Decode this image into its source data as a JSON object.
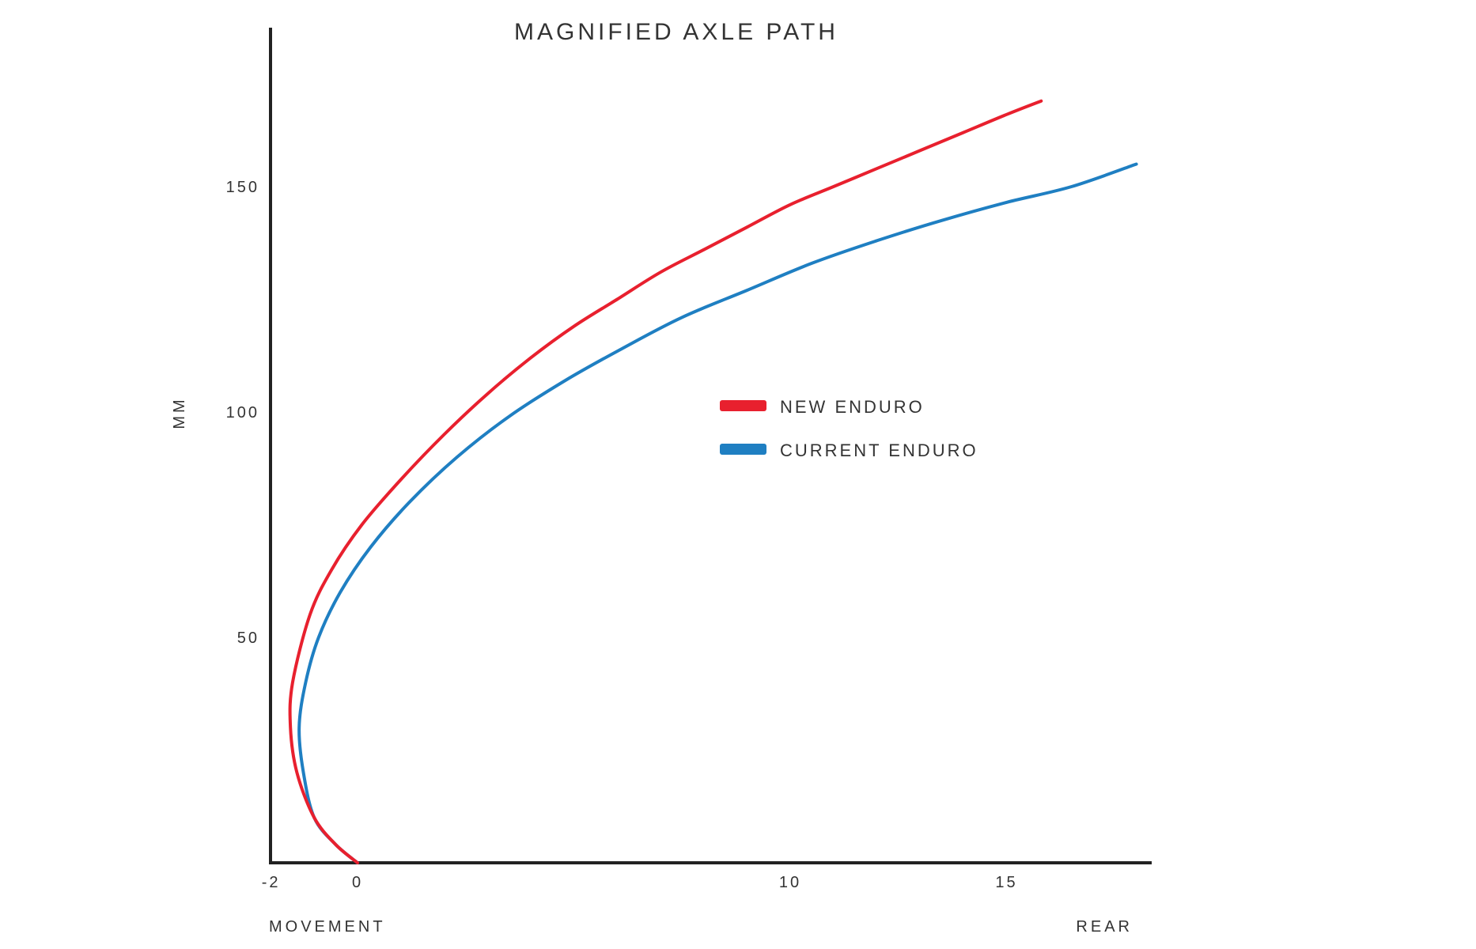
{
  "chart_data": {
    "type": "line",
    "title": "MAGNIFIED AXLE PATH",
    "xlabel_left": "MOVEMENT",
    "xlabel_right": "REAR",
    "ylabel": "MM",
    "xlim": [
      -2,
      18.2
    ],
    "ylim": [
      0,
      185
    ],
    "x_ticks": [
      -2,
      0,
      10,
      15
    ],
    "x_tick_labels": [
      "-2",
      "0",
      "10",
      "15"
    ],
    "y_ticks": [
      50,
      100,
      150
    ],
    "y_tick_labels": [
      "50",
      "100",
      "150"
    ],
    "grid": false,
    "legend_position": "center-right",
    "series": [
      {
        "name": "NEW ENDURO",
        "color": "#e8202e",
        "points": [
          [
            0,
            0
          ],
          [
            -0.5,
            4
          ],
          [
            -1.0,
            10
          ],
          [
            -1.4,
            20
          ],
          [
            -1.55,
            30
          ],
          [
            -1.5,
            40
          ],
          [
            -1.1,
            55
          ],
          [
            -0.6,
            65
          ],
          [
            0.1,
            75
          ],
          [
            1.0,
            85
          ],
          [
            2.0,
            95
          ],
          [
            3.0,
            104
          ],
          [
            4.0,
            112
          ],
          [
            5.0,
            119
          ],
          [
            6.0,
            125
          ],
          [
            7.0,
            131
          ],
          [
            8.0,
            136
          ],
          [
            9.0,
            141
          ],
          [
            10.0,
            146
          ],
          [
            11.0,
            150
          ],
          [
            12.0,
            154
          ],
          [
            13.0,
            158
          ],
          [
            14.0,
            162
          ],
          [
            15.0,
            166
          ],
          [
            15.8,
            169
          ]
        ]
      },
      {
        "name": "CURRENT ENDURO",
        "color": "#1f7fc2",
        "points": [
          [
            0,
            0
          ],
          [
            -0.5,
            4
          ],
          [
            -1.0,
            10
          ],
          [
            -1.25,
            20
          ],
          [
            -1.35,
            30
          ],
          [
            -1.2,
            40
          ],
          [
            -0.9,
            50
          ],
          [
            -0.4,
            60
          ],
          [
            0.3,
            70
          ],
          [
            1.2,
            80
          ],
          [
            2.3,
            90
          ],
          [
            3.5,
            99
          ],
          [
            4.8,
            107
          ],
          [
            6.1,
            114
          ],
          [
            7.5,
            121
          ],
          [
            9.0,
            127
          ],
          [
            10.5,
            133
          ],
          [
            12.0,
            138
          ],
          [
            13.5,
            142.5
          ],
          [
            15.0,
            146.5
          ],
          [
            16.5,
            150
          ],
          [
            18.0,
            155
          ]
        ]
      }
    ]
  }
}
